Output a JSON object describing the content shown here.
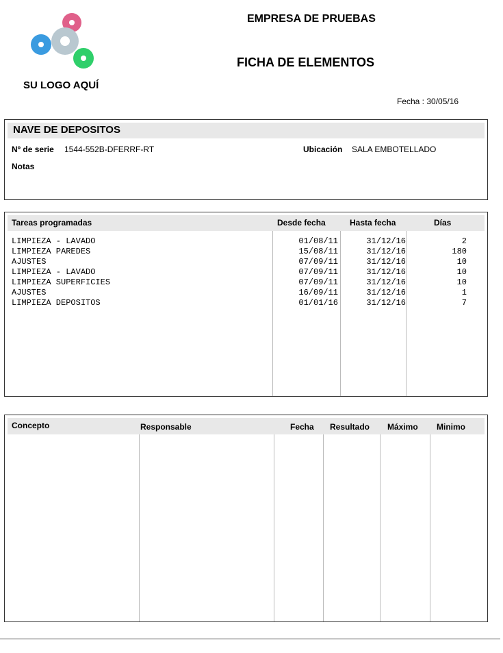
{
  "header": {
    "logo_text": "SU LOGO AQUÍ",
    "company": "EMPRESA DE PRUEBAS",
    "title": "FICHA DE ELEMENTOS",
    "date_label": "Fecha :",
    "date": "30/05/16"
  },
  "element": {
    "name": "NAVE DE DEPOSITOS",
    "serial_label": "Nº de serie",
    "serial": "1544-552B-DFERRF-RT",
    "location_label": "Ubicación",
    "location": "SALA EMBOTELLADO",
    "notes_label": "Notas"
  },
  "tasks": {
    "columns": [
      "Tareas programadas",
      "Desde fecha",
      "Hasta fecha",
      "Días"
    ],
    "rows": [
      [
        "LIMPIEZA - LAVADO",
        "01/08/11",
        "31/12/16",
        "2"
      ],
      [
        "LIMPIEZA PAREDES",
        "15/08/11",
        "31/12/16",
        "180"
      ],
      [
        "AJUSTES",
        "07/09/11",
        "31/12/16",
        "10"
      ],
      [
        "LIMPIEZA - LAVADO",
        "07/09/11",
        "31/12/16",
        "10"
      ],
      [
        "LIMPIEZA SUPERFICIES",
        "07/09/11",
        "31/12/16",
        "10"
      ],
      [
        "AJUSTES",
        "16/09/11",
        "31/12/16",
        "1"
      ],
      [
        "LIMPIEZA DEPOSITOS",
        "01/01/16",
        "31/12/16",
        "7"
      ]
    ]
  },
  "controls": {
    "columns": [
      "Concepto",
      "Responsable",
      "Fecha",
      "Resultado",
      "Máximo",
      "Minimo"
    ]
  }
}
